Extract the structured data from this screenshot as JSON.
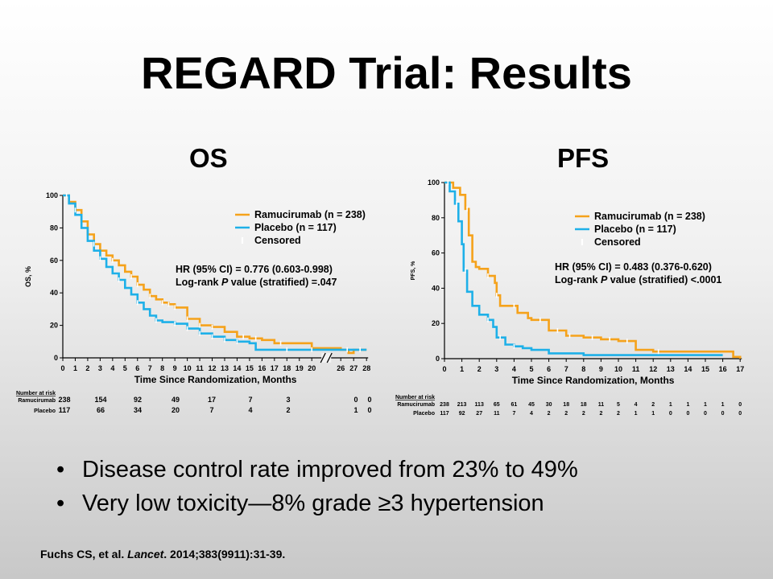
{
  "slide": {
    "title": "REGARD Trial: Results",
    "bullets": [
      "Disease control rate improved from 23% to 49%",
      "Very low toxicity—8% grade ≥3 hypertension"
    ],
    "citation_a": "Fuchs CS, et al. ",
    "citation_journal": "Lancet",
    "citation_b": ". 2014;383(9911):31-39.",
    "bullet_glyph": "•"
  },
  "colors": {
    "ramucirumab": "#f5a21b",
    "placebo": "#1eb0e8",
    "text": "#000000"
  },
  "chart_data": [
    {
      "type": "line",
      "title": "OS",
      "xlabel": "Time Since Randomization, Months",
      "ylabel": "OS, %",
      "ylim": [
        0,
        100
      ],
      "y_ticks": [
        "0",
        "20",
        "40",
        "60",
        "80",
        "100"
      ],
      "x_ticks": [
        "0",
        "1",
        "2",
        "3",
        "4",
        "5",
        "6",
        "7",
        "8",
        "9",
        "10",
        "11",
        "12",
        "13",
        "14",
        "15",
        "16",
        "17",
        "18",
        "19",
        "20",
        "26",
        "27",
        "28"
      ],
      "axis_break": "between 20 and 26",
      "legend": [
        {
          "label": "Ramucirumab (n = 238)",
          "color": "#f5a21b",
          "marker": "line"
        },
        {
          "label": "Placebo (n = 117)",
          "color": "#1eb0e8",
          "marker": "line"
        },
        {
          "label": "Censored",
          "color": "#ffffff",
          "marker": "tick"
        }
      ],
      "legend_position": "top-right",
      "annotation_lines": [
        [
          {
            "t": "HR (95% CI) = 0.776 (0.603-0.998)",
            "i": false
          }
        ],
        [
          {
            "t": "Log-rank ",
            "i": false
          },
          {
            "t": "P",
            "i": true
          },
          {
            "t": " value (stratified) =.047",
            "i": false
          }
        ]
      ],
      "series": [
        {
          "name": "Ramucirumab (n = 238)",
          "color": "#f5a21b",
          "x": [
            0,
            0.5,
            1,
            1.5,
            2,
            2.5,
            3,
            3.5,
            4,
            4.5,
            5,
            5.5,
            6,
            6.5,
            7,
            7.5,
            8,
            8.5,
            9,
            10,
            11,
            12,
            13,
            14,
            15,
            16,
            17,
            18,
            19,
            20,
            26,
            26.6,
            27,
            28
          ],
          "y": [
            100,
            96,
            91,
            84,
            76,
            70,
            66,
            63,
            60,
            57,
            53,
            50,
            45,
            42,
            38,
            36,
            34,
            33,
            31,
            24,
            20,
            19,
            16,
            13,
            12,
            11,
            9,
            9,
            9,
            6,
            5,
            3,
            5,
            5
          ],
          "censored_x": [
            1,
            2.5,
            4,
            5.5,
            6,
            7,
            8,
            8.5,
            9,
            10,
            11,
            12,
            14.5,
            15.5,
            17.5,
            26.5,
            27.5
          ]
        },
        {
          "name": "Placebo (n = 117)",
          "color": "#1eb0e8",
          "x": [
            0,
            0.5,
            1,
            1.5,
            2,
            2.5,
            3,
            3.5,
            4,
            4.5,
            5,
            5.5,
            6,
            6.5,
            7,
            7.5,
            8,
            8.5,
            9,
            10,
            11,
            12,
            13,
            14,
            15,
            15.5,
            16,
            20,
            26,
            28
          ],
          "y": [
            100,
            95,
            88,
            80,
            72,
            66,
            61,
            56,
            52,
            48,
            43,
            39,
            34,
            30,
            26,
            23,
            22,
            22,
            21,
            18,
            15,
            13,
            11,
            10,
            9,
            5,
            5,
            5,
            5,
            5
          ],
          "censored_x": [
            0.3,
            3,
            4.5,
            6,
            7.5,
            9,
            10,
            11,
            12,
            13,
            14,
            18,
            20,
            27.5
          ]
        }
      ],
      "risk_table": {
        "header": "Number at risk",
        "rows": [
          {
            "label": "Ramucirumab",
            "x": [
              0,
              2,
              4,
              6,
              8,
              10,
              12,
              15,
              17,
              19,
              26,
              27
            ],
            "values": [
              "238",
              "154",
              "92",
              "49",
              "17",
              "7",
              "3",
              "",
              "0",
              "0",
              "",
              ""
            ]
          },
          {
            "label": "Placebo",
            "x": [
              0,
              2,
              4,
              6,
              8,
              10,
              12,
              15,
              17,
              19,
              26,
              27
            ],
            "values": [
              "117",
              "66",
              "34",
              "20",
              "7",
              "4",
              "2",
              "",
              "1",
              "0",
              "",
              ""
            ]
          }
        ]
      }
    },
    {
      "type": "line",
      "title": "PFS",
      "xlabel": "Time Since Randomization, Months",
      "ylabel": "PFS, %",
      "ylim": [
        0,
        100
      ],
      "y_ticks": [
        "0",
        "20",
        "40",
        "60",
        "80",
        "100"
      ],
      "x_ticks": [
        "0",
        "1",
        "2",
        "3",
        "4",
        "5",
        "6",
        "7",
        "8",
        "9",
        "10",
        "11",
        "12",
        "13",
        "14",
        "15",
        "16",
        "17"
      ],
      "legend": [
        {
          "label": "Ramucirumab (n = 238)",
          "color": "#f5a21b",
          "marker": "line"
        },
        {
          "label": "Placebo (n = 117)",
          "color": "#1eb0e8",
          "marker": "line"
        },
        {
          "label": "Censored",
          "color": "#ffffff",
          "marker": "tick"
        }
      ],
      "legend_position": "top-right",
      "annotation_lines": [
        [
          {
            "t": "HR (95% CI) = 0.483 (0.376-0.620)",
            "i": false
          }
        ],
        [
          {
            "t": "Log-rank ",
            "i": false
          },
          {
            "t": "P",
            "i": true
          },
          {
            "t": " value (stratified) <.0001",
            "i": false
          }
        ]
      ],
      "series": [
        {
          "name": "Ramucirumab (n = 238)",
          "color": "#f5a21b",
          "x": [
            0,
            0.5,
            0.9,
            1.2,
            1.4,
            1.6,
            1.8,
            2,
            2.5,
            2.9,
            3,
            3.2,
            4,
            4.2,
            4.8,
            5,
            6,
            7,
            8,
            9,
            10,
            11,
            12,
            13,
            14,
            15,
            16,
            16.6,
            17
          ],
          "y": [
            100,
            97,
            93,
            85,
            70,
            55,
            52,
            51,
            47,
            43,
            36,
            30,
            30,
            26,
            23,
            22,
            16,
            13,
            12,
            11,
            10,
            5,
            4,
            4,
            4,
            4,
            4,
            1,
            0
          ],
          "censored_x": [
            1.3,
            2.5,
            3,
            4,
            5.5,
            6.5,
            7.2,
            8.5,
            9.5,
            10.5,
            12.3
          ]
        },
        {
          "name": "Placebo (n = 117)",
          "color": "#1eb0e8",
          "x": [
            0,
            0.3,
            0.6,
            0.8,
            1,
            1.1,
            1.3,
            1.6,
            2,
            2.5,
            2.8,
            3,
            3.5,
            4,
            4.5,
            5,
            6,
            8,
            11,
            16
          ],
          "y": [
            100,
            95,
            88,
            78,
            65,
            50,
            38,
            30,
            25,
            22,
            18,
            12,
            8,
            7,
            6,
            5,
            3,
            2,
            2,
            2
          ],
          "censored_x": [
            0.2,
            0.7,
            1.2,
            2.5,
            3.2,
            4
          ]
        }
      ],
      "risk_table": {
        "header": "Number at risk",
        "rows": [
          {
            "label": "Ramucirumab",
            "x": [
              0,
              1,
              2,
              3,
              4,
              5,
              6,
              7,
              8,
              9,
              10,
              11,
              12,
              13,
              14,
              15,
              16,
              17
            ],
            "values": [
              "238",
              "213",
              "113",
              "65",
              "61",
              "45",
              "30",
              "18",
              "18",
              "11",
              "5",
              "4",
              "2",
              "1",
              "1",
              "1",
              "1",
              "0"
            ]
          },
          {
            "label": "Placebo",
            "x": [
              0,
              1,
              2,
              3,
              4,
              5,
              6,
              7,
              8,
              9,
              10,
              11,
              12,
              13,
              14,
              15,
              16,
              17
            ],
            "values": [
              "117",
              "92",
              "27",
              "11",
              "7",
              "4",
              "2",
              "2",
              "2",
              "2",
              "2",
              "1",
              "1",
              "0",
              "0",
              "0",
              "0",
              "0"
            ]
          }
        ]
      }
    }
  ]
}
